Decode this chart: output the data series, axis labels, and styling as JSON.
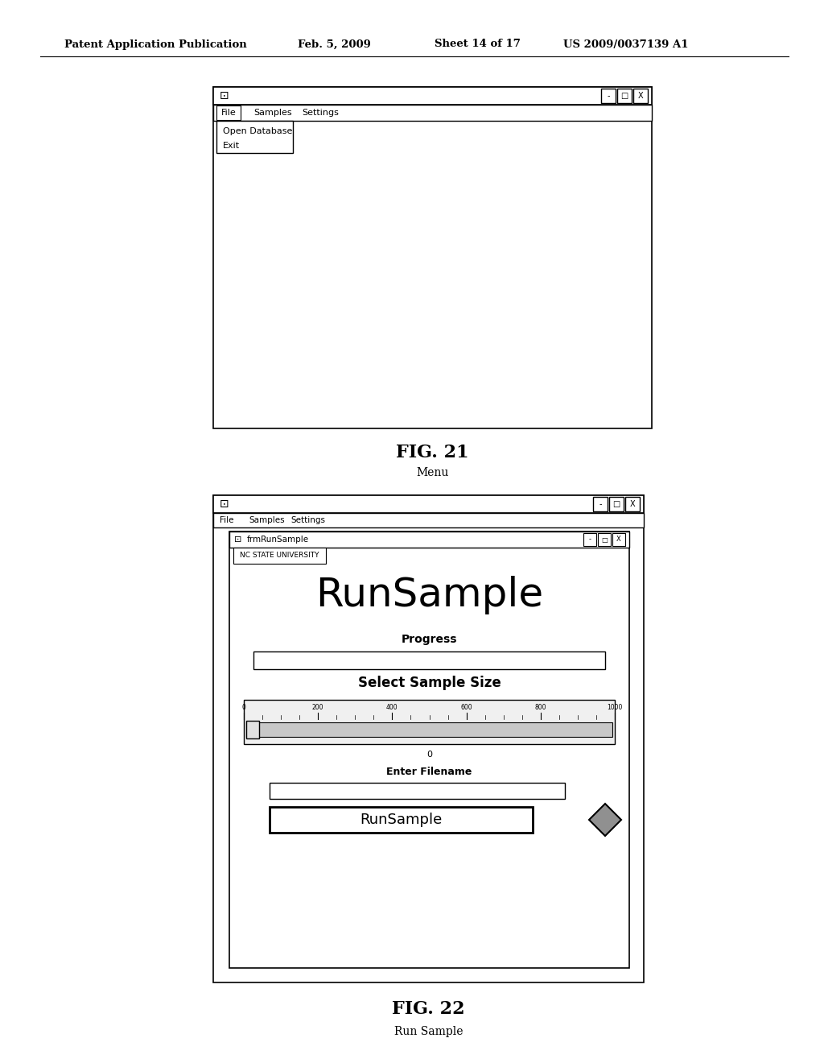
{
  "bg_color": "#ffffff",
  "header_text": "Patent Application Publication",
  "header_date": "Feb. 5, 2009",
  "header_sheet": "Sheet 14 of 17",
  "header_patent": "US 2009/0037139 A1",
  "fig21_label": "FIG. 21",
  "fig21_sub": "Menu",
  "fig22_label": "FIG. 22",
  "fig22_sub": "Run Sample",
  "win1": {
    "menu_items": [
      "File",
      "Samples",
      "Settings"
    ],
    "dropdown": [
      "Open Database",
      "Exit"
    ]
  },
  "win2": {
    "outer_menu": [
      "File",
      "Samples",
      "Settings"
    ],
    "inner_title": "frmRunSample",
    "tab_label": "NC STATE UNIVERSITY",
    "big_title": "RunSample",
    "progress_label": "Progress",
    "sample_size_label": "Select Sample Size",
    "slider_ticks": [
      0,
      200,
      400,
      600,
      800,
      1000
    ],
    "slider_value": "0",
    "filename_label": "Enter Filename",
    "button_label": "RunSample"
  }
}
